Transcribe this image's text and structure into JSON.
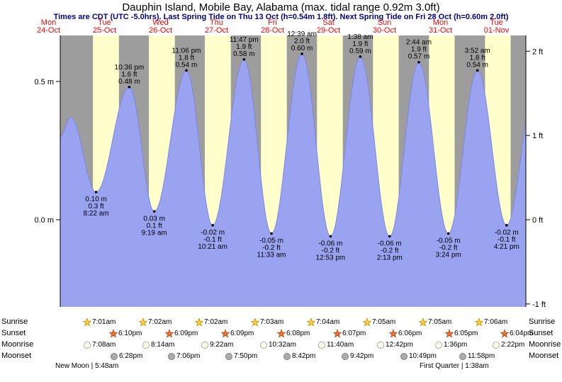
{
  "title": "Dauphin Island, Mobile Bay, Alabama (max. tidal range 0.92m 3.0ft)",
  "subtitle": "Times are CDT (UTC -5.0hrs). Last Spring Tide on Thu 13 Oct (h=0.54m 1.8ft). Next Spring Tide on Fri 28 Oct (h=0.60m 2.0ft)",
  "colors": {
    "day_label": "#ff0000",
    "subtitle": "#00008b",
    "night_band": "#9d9d9d",
    "day_band": "#ffffcc",
    "tide_fill": "#9aa3f0",
    "tide_stroke": "#7d86e8",
    "text": "#000000"
  },
  "chart_data": {
    "type": "area",
    "title": "Dauphin Island, Mobile Bay, Alabama (max. tidal range 0.92m 3.0ft)",
    "x_days": [
      {
        "dow": "Mon",
        "date": "24-Oct"
      },
      {
        "dow": "Tue",
        "date": "25-Oct"
      },
      {
        "dow": "Wed",
        "date": "26-Oct"
      },
      {
        "dow": "Thu",
        "date": "27-Oct"
      },
      {
        "dow": "Fri",
        "date": "28-Oct"
      },
      {
        "dow": "Sat",
        "date": "29-Oct"
      },
      {
        "dow": "Sun",
        "date": "30-Oct"
      },
      {
        "dow": "Mon",
        "date": "31-Oct"
      },
      {
        "dow": "Tue",
        "date": "01-Nov"
      }
    ],
    "y_left_labels": [
      {
        "text": "0.5 m",
        "m": 0.5
      },
      {
        "text": "0.0 m",
        "m": 0.0
      }
    ],
    "y_right_labels": [
      {
        "text": "2 ft",
        "ft": 2
      },
      {
        "text": "1 ft",
        "ft": 1
      },
      {
        "text": "0 ft",
        "ft": 0
      },
      {
        "text": "-1 ft",
        "ft": -1
      }
    ],
    "y_range_m": [
      -0.32,
      0.66
    ],
    "tide_extremes": [
      {
        "kind": "high",
        "t": 21.5,
        "h": 0.37,
        "labeled": false,
        "time": "",
        "ft": "",
        "m": ""
      },
      {
        "kind": "low",
        "t": 32.37,
        "h": 0.1,
        "labeled": true,
        "time": "8:22 am",
        "ft": "0.3 ft",
        "m": "0.10 m"
      },
      {
        "kind": "high",
        "t": 46.6,
        "h": 0.48,
        "labeled": true,
        "time": "10:36 pm",
        "ft": "1.6 ft",
        "m": "0.48 m"
      },
      {
        "kind": "low",
        "t": 57.32,
        "h": 0.03,
        "labeled": true,
        "time": "9:19 am",
        "ft": "0.1 ft",
        "m": "0.03 m"
      },
      {
        "kind": "high",
        "t": 71.1,
        "h": 0.54,
        "labeled": true,
        "time": "11:06 pm",
        "ft": "1.8 ft",
        "m": "0.54 m"
      },
      {
        "kind": "low",
        "t": 82.35,
        "h": -0.02,
        "labeled": true,
        "time": "10:21 am",
        "ft": "-0.1 ft",
        "m": "-0.02 m"
      },
      {
        "kind": "high",
        "t": 95.78,
        "h": 0.58,
        "labeled": true,
        "time": "11:47 pm",
        "ft": "1.9 ft",
        "m": "0.58 m"
      },
      {
        "kind": "low",
        "t": 107.55,
        "h": -0.05,
        "labeled": true,
        "time": "11:33 am",
        "ft": "-0.2 ft",
        "m": "-0.05 m"
      },
      {
        "kind": "high",
        "t": 120.65,
        "h": 0.6,
        "labeled": true,
        "time": "12:39 am",
        "ft": "2.0 ft",
        "m": "0.60 m"
      },
      {
        "kind": "low",
        "t": 132.88,
        "h": -0.06,
        "labeled": true,
        "time": "12:53 pm",
        "ft": "-0.2 ft",
        "m": "-0.06 m"
      },
      {
        "kind": "high",
        "t": 145.63,
        "h": 0.59,
        "labeled": true,
        "time": "1:38 am",
        "ft": "1.9 ft",
        "m": "0.59 m"
      },
      {
        "kind": "low",
        "t": 158.22,
        "h": -0.06,
        "labeled": true,
        "time": "2:13 pm",
        "ft": "-0.2 ft",
        "m": "-0.06 m"
      },
      {
        "kind": "high",
        "t": 170.73,
        "h": 0.57,
        "labeled": true,
        "time": "2:44 am",
        "ft": "1.9 ft",
        "m": "0.57 m"
      },
      {
        "kind": "low",
        "t": 183.4,
        "h": -0.05,
        "labeled": true,
        "time": "3:24 pm",
        "ft": "-0.2 ft",
        "m": "-0.05 m"
      },
      {
        "kind": "high",
        "t": 195.87,
        "h": 0.54,
        "labeled": true,
        "time": "3:52 am",
        "ft": "1.8 ft",
        "m": "0.54 m"
      },
      {
        "kind": "low",
        "t": 208.35,
        "h": -0.02,
        "labeled": true,
        "time": "4:21 pm",
        "ft": "-0.1 ft",
        "m": "-0.02 m"
      }
    ],
    "curve_endpoints": {
      "start": {
        "t": 17.0,
        "h": 0.3
      },
      "end": {
        "t": 221.0,
        "h": 0.5
      }
    }
  },
  "sun_moon": {
    "left_labels": [
      "Sunrise",
      "Sunset",
      "Moonrise",
      "Moonset"
    ],
    "right_labels": [
      "Sunrise",
      "Sunset",
      "Moonrise",
      "Moonset"
    ],
    "sunrise": [
      {
        "t": 31.02,
        "time": "7:01am"
      },
      {
        "t": 55.03,
        "time": "7:02am"
      },
      {
        "t": 79.03,
        "time": "7:02am"
      },
      {
        "t": 103.05,
        "time": "7:03am"
      },
      {
        "t": 127.07,
        "time": "7:04am"
      },
      {
        "t": 151.08,
        "time": "7:05am"
      },
      {
        "t": 175.08,
        "time": "7:05am"
      },
      {
        "t": 199.1,
        "time": "7:06am"
      }
    ],
    "sunset": [
      {
        "t": 42.17,
        "time": "6:10pm"
      },
      {
        "t": 66.15,
        "time": "6:09pm"
      },
      {
        "t": 90.15,
        "time": "6:09pm"
      },
      {
        "t": 114.13,
        "time": "6:08pm"
      },
      {
        "t": 138.12,
        "time": "6:07pm"
      },
      {
        "t": 162.1,
        "time": "6:06pm"
      },
      {
        "t": 186.08,
        "time": "6:05pm"
      },
      {
        "t": 210.07,
        "time": "6:04pm"
      }
    ],
    "moonrise": [
      {
        "t": 31.13,
        "time": "7:08am"
      },
      {
        "t": 56.23,
        "time": "8:14am"
      },
      {
        "t": 81.37,
        "time": "9:22am"
      },
      {
        "t": 106.53,
        "time": "10:32am"
      },
      {
        "t": 131.67,
        "time": "11:40am"
      },
      {
        "t": 156.7,
        "time": "12:42pm"
      },
      {
        "t": 181.6,
        "time": "1:36pm"
      },
      {
        "t": 206.37,
        "time": "2:22pm"
      }
    ],
    "moonset": [
      {
        "t": 42.47,
        "time": "6:28pm"
      },
      {
        "t": 67.1,
        "time": "7:06pm"
      },
      {
        "t": 91.83,
        "time": "7:50pm"
      },
      {
        "t": 116.7,
        "time": "8:42pm"
      },
      {
        "t": 141.7,
        "time": "9:42pm"
      },
      {
        "t": 166.82,
        "time": "10:49pm"
      },
      {
        "t": 191.97,
        "time": "11:58pm"
      }
    ],
    "phases": [
      {
        "label": "New Moon | 5:48am"
      },
      {
        "label": "First Quarter | 1:38am"
      }
    ]
  }
}
